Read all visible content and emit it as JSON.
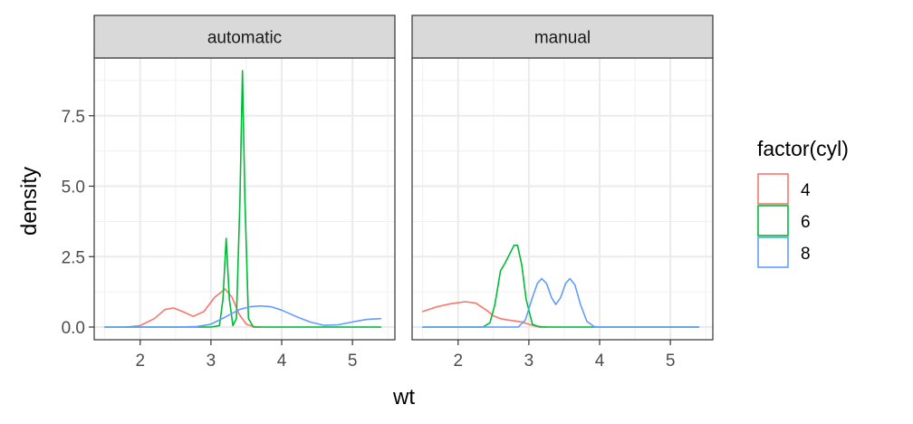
{
  "chart_data": {
    "type": "line",
    "subtype": "density",
    "xlabel": "wt",
    "ylabel": "density",
    "xlim": [
      1.35,
      5.6
    ],
    "ylim": [
      -0.45,
      9.55
    ],
    "x_ticks": [
      2,
      3,
      4,
      5
    ],
    "y_ticks": [
      0.0,
      2.5,
      5.0,
      7.5
    ],
    "y_tick_labels": [
      "0.0",
      "2.5",
      "5.0",
      "7.5"
    ],
    "grid": true,
    "legend": {
      "title": "factor(cyl)",
      "position": "right",
      "entries": [
        {
          "label": "4",
          "color": "#F8766D"
        },
        {
          "label": "6",
          "color": "#00BA38"
        },
        {
          "label": "8",
          "color": "#619CFF"
        }
      ]
    },
    "panels": [
      {
        "strip": "automatic",
        "series": [
          {
            "name": "4",
            "color": "#F8766D",
            "x": [
              1.8,
              2.0,
              2.2,
              2.35,
              2.47,
              2.6,
              2.75,
              2.9,
              3.05,
              3.2,
              3.3,
              3.4,
              3.5,
              3.6,
              3.7
            ],
            "y": [
              0.0,
              0.05,
              0.3,
              0.62,
              0.68,
              0.55,
              0.38,
              0.55,
              1.05,
              1.35,
              1.05,
              0.45,
              0.1,
              0.02,
              0.0
            ]
          },
          {
            "name": "6",
            "color": "#00BA38",
            "x": [
              1.5,
              3.0,
              3.12,
              3.17,
              3.215,
              3.26,
              3.31,
              3.36,
              3.41,
              3.445,
              3.48,
              3.53,
              3.6,
              5.4
            ],
            "y": [
              0.0,
              0.0,
              0.05,
              1.0,
              3.15,
              1.0,
              0.05,
              0.3,
              4.5,
              9.1,
              4.5,
              0.3,
              0.0,
              0.0
            ]
          },
          {
            "name": "8",
            "color": "#619CFF",
            "x": [
              1.5,
              2.5,
              2.8,
              3.0,
              3.2,
              3.4,
              3.55,
              3.7,
              3.85,
              4.0,
              4.2,
              4.4,
              4.6,
              4.8,
              5.0,
              5.2,
              5.4
            ],
            "y": [
              0.0,
              0.0,
              0.02,
              0.1,
              0.35,
              0.62,
              0.72,
              0.75,
              0.72,
              0.6,
              0.38,
              0.18,
              0.06,
              0.08,
              0.18,
              0.27,
              0.3
            ]
          }
        ]
      },
      {
        "strip": "manual",
        "series": [
          {
            "name": "4",
            "color": "#F8766D",
            "x": [
              1.5,
              1.7,
              1.9,
              2.1,
              2.25,
              2.4,
              2.5,
              2.6,
              2.7,
              2.8,
              2.9,
              3.0,
              3.1,
              3.25
            ],
            "y": [
              0.55,
              0.72,
              0.83,
              0.9,
              0.85,
              0.6,
              0.4,
              0.3,
              0.25,
              0.22,
              0.18,
              0.1,
              0.03,
              0.0
            ]
          },
          {
            "name": "6",
            "color": "#00BA38",
            "x": [
              1.5,
              2.35,
              2.45,
              2.52,
              2.6,
              2.66,
              2.72,
              2.79,
              2.84,
              2.9,
              2.96,
              3.05,
              3.15,
              5.4
            ],
            "y": [
              0.0,
              0.0,
              0.15,
              0.8,
              2.0,
              2.25,
              2.55,
              2.9,
              2.9,
              2.2,
              1.0,
              0.1,
              0.0,
              0.0
            ]
          },
          {
            "name": "8",
            "color": "#619CFF",
            "x": [
              1.5,
              2.85,
              2.95,
              3.05,
              3.12,
              3.18,
              3.25,
              3.32,
              3.38,
              3.45,
              3.52,
              3.58,
              3.65,
              3.73,
              3.82,
              3.92,
              4.0,
              5.4
            ],
            "y": [
              0.0,
              0.0,
              0.25,
              1.05,
              1.55,
              1.72,
              1.55,
              1.05,
              0.8,
              1.05,
              1.55,
              1.72,
              1.5,
              0.8,
              0.2,
              0.02,
              0.0,
              0.0
            ]
          }
        ]
      }
    ]
  }
}
